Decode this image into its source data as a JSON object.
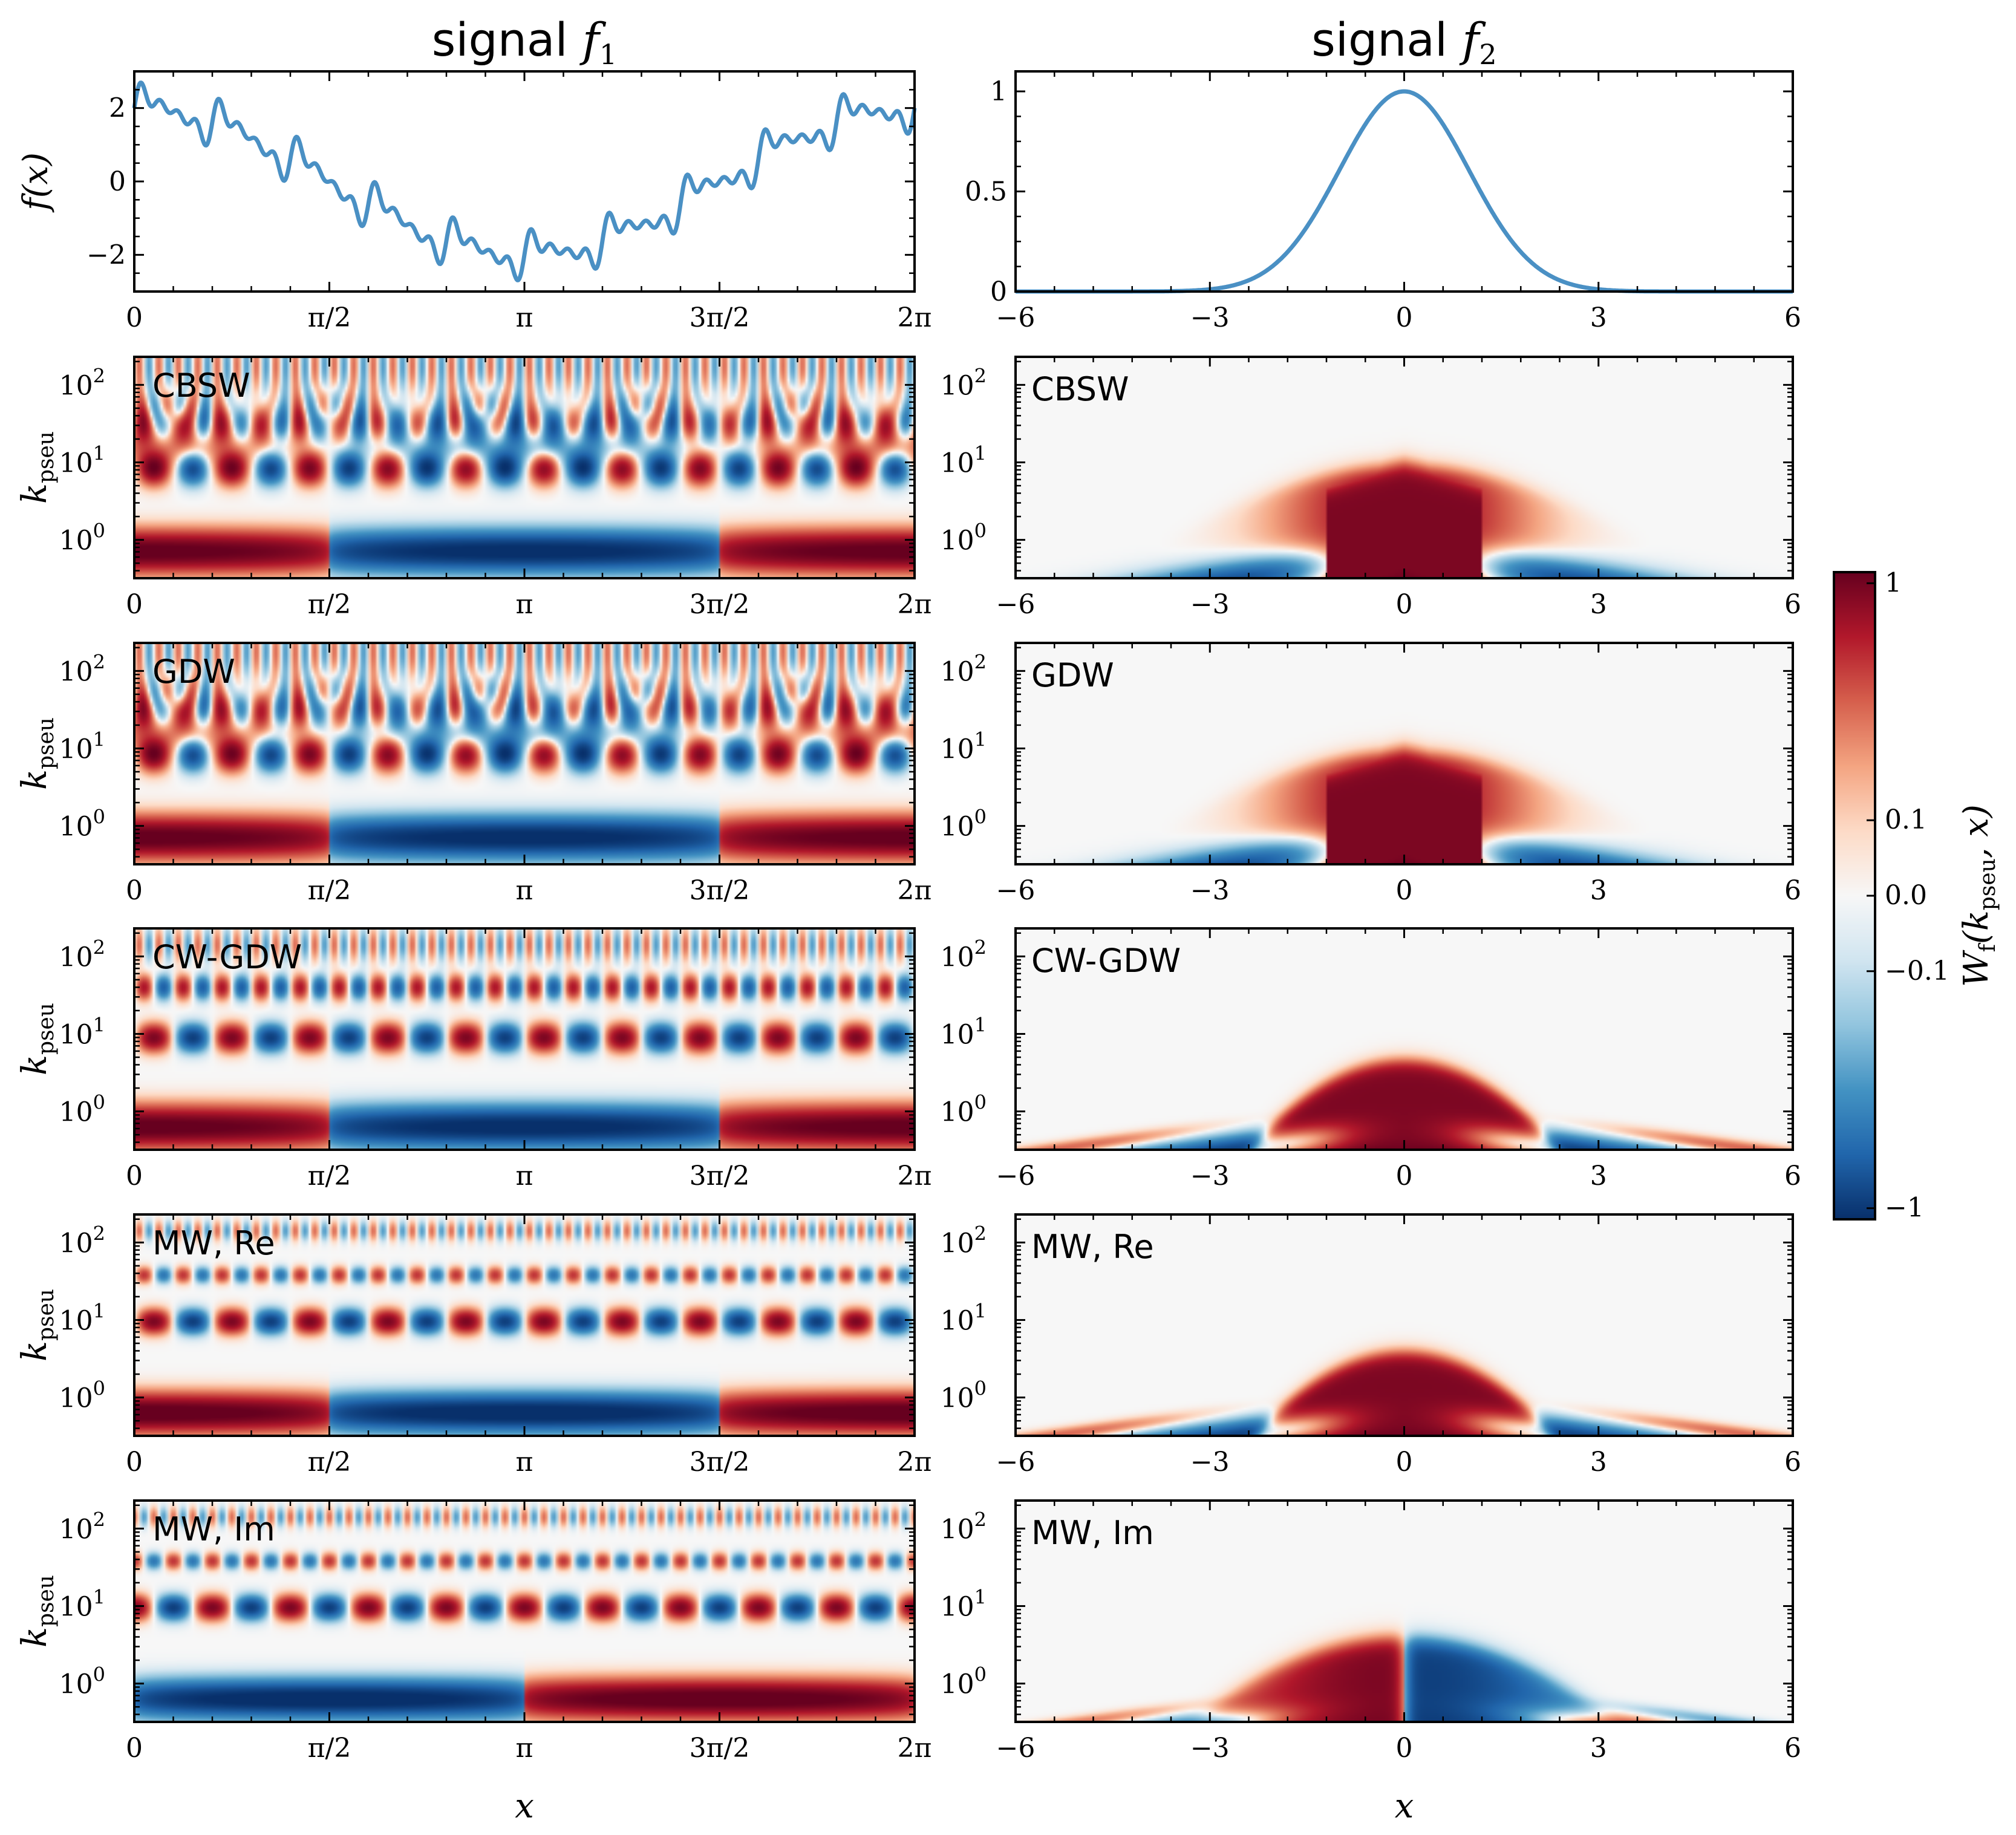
{
  "colors": {
    "line": "#4a90c4",
    "map": [
      "#08306b",
      "#2166ac",
      "#4393c3",
      "#92c5de",
      "#d1e5f0",
      "#f7f7f7",
      "#fddbc7",
      "#f4a582",
      "#d6604d",
      "#b2182b",
      "#67001f"
    ]
  },
  "chart_data": [
    {
      "type": "line",
      "title_prefix": "signal ",
      "title_var": "f",
      "title_sub": "1",
      "ylabel": "f(x)",
      "x_ticks": [
        "0",
        "π/2",
        "π",
        "3π/2",
        "2π"
      ],
      "y_ticks": [
        "2",
        "0",
        "−2"
      ],
      "ylim": [
        -3,
        3
      ],
      "xlim": [
        0,
        6.2832
      ],
      "description_formula": "2cos(x) + 0.3sin(10x) + 0.2sin(20x) + 0.2sin(30x) + 0.2sin(40x)"
    },
    {
      "type": "line",
      "title_prefix": "signal ",
      "title_var": "f",
      "title_sub": "2",
      "x_ticks": [
        "−6",
        "−3",
        "0",
        "3",
        "6"
      ],
      "y_ticks": [
        "1",
        "0.5",
        "0"
      ],
      "ylim": [
        0,
        1.1
      ],
      "xlim": [
        -6,
        6
      ],
      "description_formula": "exp(-x^2/2)"
    },
    {
      "type": "heatmap",
      "grid": "left-column",
      "xlabel": "x",
      "ylabel_main": "k",
      "ylabel_sub": "pseu",
      "x_ticks": [
        "0",
        "π/2",
        "π",
        "3π/2",
        "2π"
      ],
      "y_ticks": [
        "10",
        "10",
        "10"
      ],
      "y_tick_exps": [
        "2",
        "1",
        "0"
      ],
      "panels": [
        "CBSW",
        "GDW",
        "CW-GDW",
        "MW, Re",
        "MW, Im"
      ]
    },
    {
      "type": "heatmap",
      "grid": "right-column",
      "xlabel": "x",
      "x_ticks": [
        "−6",
        "−3",
        "0",
        "3",
        "6"
      ],
      "y_ticks": [
        "10",
        "10",
        "10"
      ],
      "y_tick_exps": [
        "2",
        "1",
        "0"
      ],
      "panels": [
        "CBSW",
        "GDW",
        "CW-GDW",
        "MW, Re",
        "MW, Im"
      ]
    },
    {
      "type": "colorbar",
      "label_main": "W",
      "label_sub_f": "f",
      "label_args_prefix": "(k",
      "label_args_sub": "pseu",
      "label_args_suffix": ", x)",
      "ticks": [
        "1",
        "0.1",
        "0.0",
        "−0.1",
        "−1"
      ],
      "tick_values": [
        1,
        0.1,
        0,
        -0.1,
        -1
      ]
    }
  ]
}
